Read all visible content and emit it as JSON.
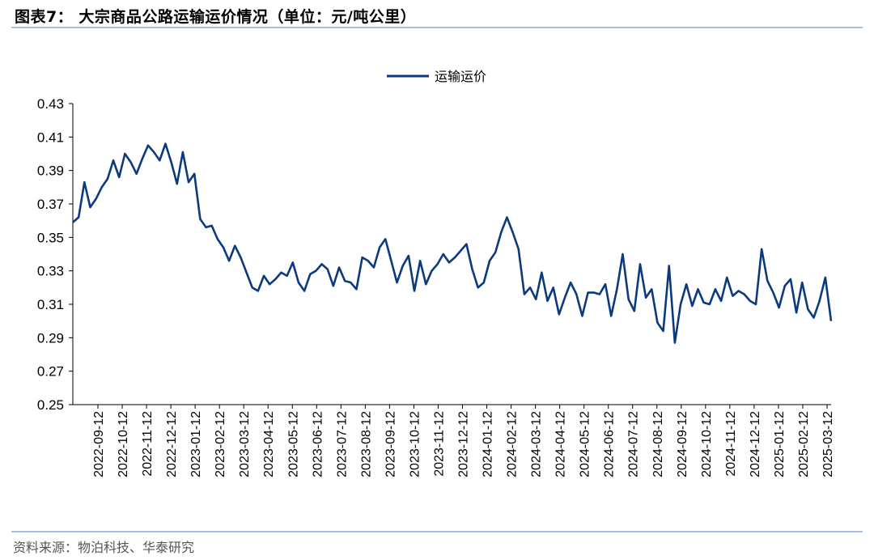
{
  "header": {
    "title": "图表7：  大宗商品公路运输运价情况（单位：元/吨公里）"
  },
  "footer": {
    "source": "资料来源：物泊科技、华泰研究"
  },
  "colors": {
    "line": "#0b3a7e",
    "rule": "#a9bfe0"
  },
  "chart_data": {
    "type": "line",
    "legend_position": "top-center",
    "grid": false,
    "ylim": [
      0.25,
      0.43
    ],
    "yticks": [
      "0.25",
      "0.27",
      "0.29",
      "0.31",
      "0.33",
      "0.35",
      "0.37",
      "0.39",
      "0.41",
      "0.43"
    ],
    "xticks": [
      "2022-09-12",
      "2022-10-12",
      "2022-11-12",
      "2022-12-12",
      "2023-01-12",
      "2023-02-12",
      "2023-03-12",
      "2023-04-12",
      "2023-05-12",
      "2023-06-12",
      "2023-07-12",
      "2023-08-12",
      "2023-09-12",
      "2023-10-12",
      "2023-11-12",
      "2023-12-12",
      "2024-01-12",
      "2024-02-12",
      "2024-03-12",
      "2024-04-12",
      "2024-05-12",
      "2024-06-12",
      "2024-07-12",
      "2024-08-12",
      "2024-09-12",
      "2024-10-12",
      "2024-11-12",
      "2024-12-12",
      "2025-01-12",
      "2025-02-12",
      "2025-03-12"
    ],
    "series": [
      {
        "name": "运输运价",
        "values": [
          0.359,
          0.362,
          0.383,
          0.368,
          0.373,
          0.38,
          0.385,
          0.396,
          0.386,
          0.4,
          0.395,
          0.388,
          0.397,
          0.405,
          0.401,
          0.396,
          0.406,
          0.395,
          0.382,
          0.401,
          0.383,
          0.388,
          0.361,
          0.356,
          0.357,
          0.349,
          0.344,
          0.336,
          0.345,
          0.338,
          0.329,
          0.32,
          0.318,
          0.327,
          0.322,
          0.325,
          0.329,
          0.327,
          0.335,
          0.323,
          0.318,
          0.328,
          0.33,
          0.334,
          0.331,
          0.321,
          0.332,
          0.324,
          0.323,
          0.319,
          0.338,
          0.336,
          0.332,
          0.344,
          0.349,
          0.336,
          0.323,
          0.333,
          0.339,
          0.318,
          0.336,
          0.322,
          0.33,
          0.334,
          0.34,
          0.335,
          0.338,
          0.342,
          0.346,
          0.331,
          0.32,
          0.323,
          0.336,
          0.341,
          0.353,
          0.362,
          0.353,
          0.343,
          0.316,
          0.32,
          0.313,
          0.329,
          0.312,
          0.32,
          0.304,
          0.314,
          0.323,
          0.316,
          0.303,
          0.317,
          0.317,
          0.316,
          0.322,
          0.303,
          0.319,
          0.34,
          0.313,
          0.306,
          0.334,
          0.314,
          0.319,
          0.299,
          0.294,
          0.333,
          0.287,
          0.31,
          0.322,
          0.309,
          0.319,
          0.311,
          0.31,
          0.319,
          0.312,
          0.326,
          0.315,
          0.318,
          0.316,
          0.312,
          0.31,
          0.343,
          0.324,
          0.317,
          0.308,
          0.321,
          0.325,
          0.305,
          0.323,
          0.307,
          0.302,
          0.312,
          0.326,
          0.3
        ]
      }
    ]
  }
}
